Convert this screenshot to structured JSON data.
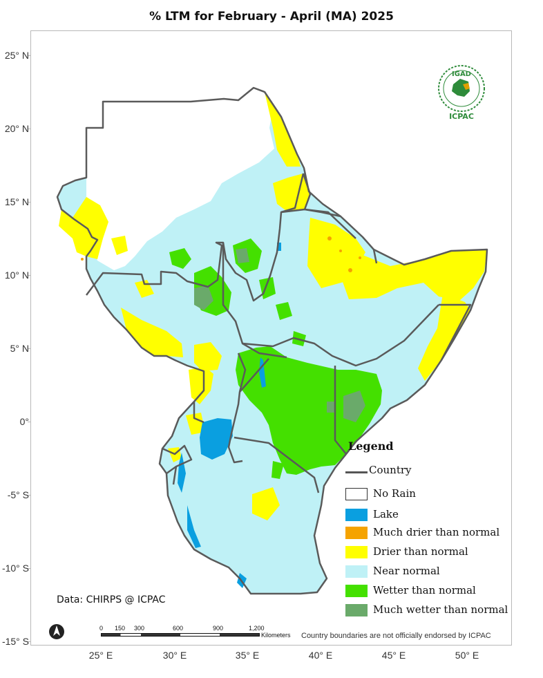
{
  "title": "% LTM  for February - April (MA)  2025",
  "axes": {
    "lat_labels": [
      "25° N",
      "20° N",
      "15° N",
      "10° N",
      "5° N",
      "0°",
      "-5° S",
      "-10° S",
      "-15° S"
    ],
    "lon_labels": [
      "25° E",
      "30° E",
      "35° E",
      "40° E",
      "45° E",
      "50° E"
    ]
  },
  "legend": {
    "title": "Legend",
    "items": [
      {
        "label": "Country",
        "kind": "line",
        "color": "#555555"
      },
      {
        "label": "No Rain",
        "kind": "box",
        "color": "#ffffff"
      },
      {
        "label": "Lake",
        "kind": "box",
        "color": "#0a9fe0"
      },
      {
        "label": "Much drier than normal",
        "kind": "box",
        "color": "#f5a300"
      },
      {
        "label": "Drier than normal",
        "kind": "box",
        "color": "#ffff00"
      },
      {
        "label": "Near normal",
        "kind": "box",
        "color": "#bff1f6"
      },
      {
        "label": "Wetter than normal",
        "kind": "box",
        "color": "#44e000"
      },
      {
        "label": "Much wetter than normal",
        "kind": "box",
        "color": "#6aaa6a"
      }
    ]
  },
  "data_source": "Data: CHIRPS @ ICPAC",
  "disclaimer": "Country boundaries are not officially endorsed by ICPAC",
  "logo": {
    "top_text": "IGAD",
    "bottom_text": "ICPAC"
  },
  "scale_bar": {
    "ticks": [
      "0",
      "150",
      "300",
      "600",
      "900",
      "1,200"
    ],
    "unit": "Kilometers"
  },
  "north_arrow": "north-arrow-icon"
}
